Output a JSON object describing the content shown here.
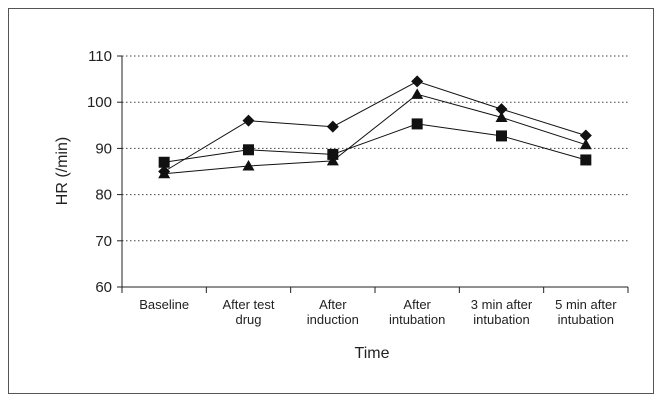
{
  "chart_data": {
    "type": "line",
    "title": "",
    "xlabel": "Time",
    "ylabel": "HR (/min)",
    "ylim": [
      60,
      110
    ],
    "yticks": [
      60,
      70,
      80,
      90,
      100,
      110
    ],
    "grid": "horizontal dotted",
    "legend": "none",
    "categories": [
      [
        "Baseline"
      ],
      [
        "After test",
        "drug"
      ],
      [
        "After",
        "induction"
      ],
      [
        "After",
        "intubation"
      ],
      [
        "3 min after",
        "intubation"
      ],
      [
        "5 min after",
        "intubation"
      ]
    ],
    "series": [
      {
        "marker": "diamond",
        "values": [
          85,
          96,
          94.7,
          104.5,
          98.5,
          92.8
        ]
      },
      {
        "marker": "square",
        "values": [
          87,
          89.7,
          88.7,
          95.3,
          92.7,
          87.5
        ]
      },
      {
        "marker": "triangle",
        "values": [
          84.5,
          86.2,
          87.3,
          101.7,
          96.7,
          90.8
        ]
      }
    ]
  }
}
